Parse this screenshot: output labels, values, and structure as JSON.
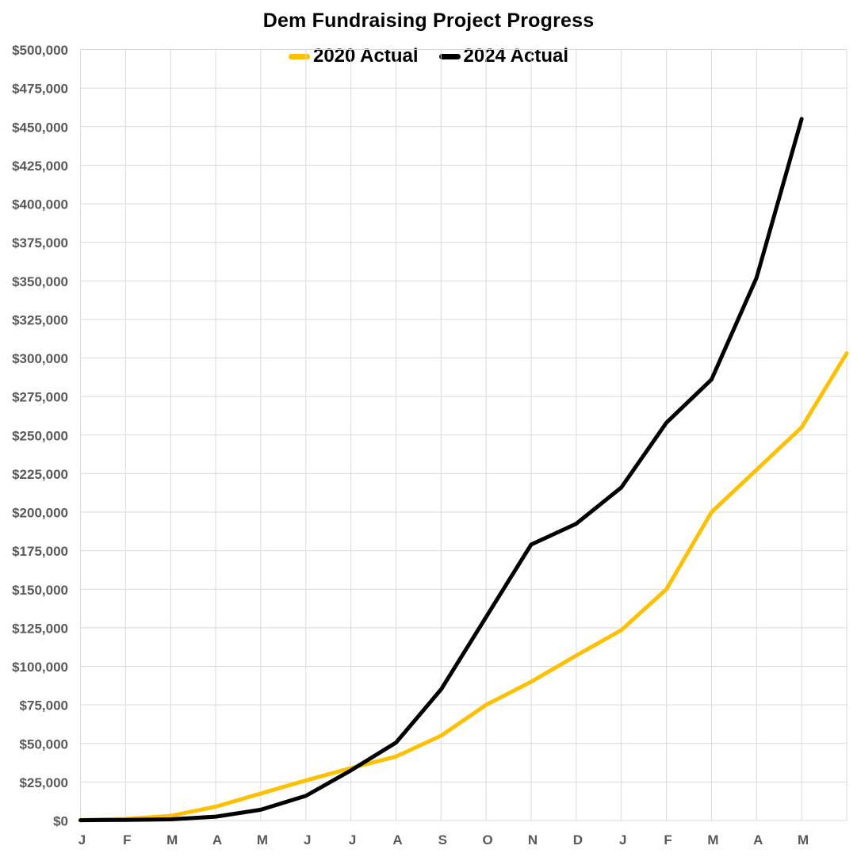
{
  "title": "Dem Fundraising Project Progress",
  "legend": {
    "items": [
      {
        "label": "2020 Actual",
        "color": "#FFC000"
      },
      {
        "label": "2024 Actual",
        "color": "#000000"
      }
    ]
  },
  "chart_data": {
    "type": "line",
    "title": "Dem Fundraising Project Progress",
    "x_labels": [
      "J",
      "F",
      "M",
      "A",
      "M",
      "J",
      "J",
      "A",
      "S",
      "O",
      "N",
      "D",
      "J",
      "F",
      "M",
      "A",
      "M"
    ],
    "x_slots": 18,
    "note_x_axis": "18 gridline slots; first 17 labeled Jan–May of following year; yellow series extends one unlabeled slot to the right plot edge",
    "series": [
      {
        "name": "2020 Actual",
        "color": "#FFC000",
        "values": [
          300,
          1000,
          3000,
          9000,
          17500,
          26000,
          34000,
          41500,
          55000,
          75000,
          90000,
          107000,
          123500,
          150000,
          200000,
          227500,
          255000,
          303000
        ]
      },
      {
        "name": "2024 Actual",
        "color": "#000000",
        "values": [
          200,
          400,
          800,
          2500,
          7000,
          16000,
          32500,
          50500,
          85000,
          132000,
          179000,
          192500,
          216000,
          258000,
          286000,
          352000,
          455000
        ]
      }
    ],
    "ylim": [
      0,
      500000
    ],
    "ystep": 25000,
    "y_tick_labels": [
      "$0",
      "$25,000",
      "$50,000",
      "$75,000",
      "$100,000",
      "$125,000",
      "$150,000",
      "$175,000",
      "$200,000",
      "$225,000",
      "$250,000",
      "$275,000",
      "$300,000",
      "$325,000",
      "$350,000",
      "$375,000",
      "$400,000",
      "$425,000",
      "$450,000",
      "$475,000",
      "$500,000"
    ],
    "grid": true,
    "legend_position": "top-center",
    "grid_color": "#D9D9D9",
    "tick_label_color": "#595959"
  }
}
